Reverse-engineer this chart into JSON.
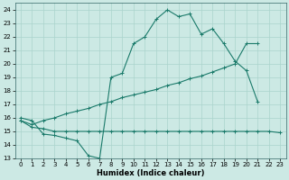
{
  "xlabel": "Humidex (Indice chaleur)",
  "xlim": [
    -0.5,
    23.5
  ],
  "ylim": [
    13,
    24.5
  ],
  "yticks": [
    13,
    14,
    15,
    16,
    17,
    18,
    19,
    20,
    21,
    22,
    23,
    24
  ],
  "xticks": [
    0,
    1,
    2,
    3,
    4,
    5,
    6,
    7,
    8,
    9,
    10,
    11,
    12,
    13,
    14,
    15,
    16,
    17,
    18,
    19,
    20,
    21,
    22,
    23
  ],
  "bg_color": "#cce9e4",
  "grid_color": "#aad4cc",
  "line_color": "#1a7a6a",
  "line1_x": [
    0,
    1,
    2,
    3,
    4,
    5,
    6,
    7,
    8,
    9,
    10,
    11,
    12,
    13,
    14,
    15,
    16,
    17,
    18,
    19,
    20,
    21
  ],
  "line1_y": [
    16.0,
    15.8,
    14.8,
    14.7,
    14.5,
    14.3,
    13.2,
    13.0,
    19.0,
    19.3,
    21.5,
    22.0,
    23.3,
    24.0,
    23.5,
    23.7,
    22.2,
    22.6,
    21.5,
    20.2,
    19.5,
    17.2
  ],
  "line2_x": [
    0,
    1,
    2,
    3,
    4,
    5,
    6,
    7,
    8,
    9,
    10,
    11,
    12,
    13,
    14,
    15,
    16,
    17,
    18,
    19,
    20,
    21,
    22,
    23
  ],
  "line2_y": [
    15.8,
    15.3,
    15.2,
    15.0,
    15.0,
    15.0,
    15.0,
    15.0,
    15.0,
    15.0,
    15.0,
    15.0,
    15.0,
    15.0,
    15.0,
    15.0,
    15.0,
    15.0,
    15.0,
    15.0,
    15.0,
    15.0,
    15.0,
    14.9
  ],
  "line3_x": [
    0,
    1,
    2,
    3,
    4,
    5,
    6,
    7,
    8,
    9,
    10,
    11,
    12,
    13,
    14,
    15,
    16,
    17,
    18,
    19,
    20,
    21
  ],
  "line3_y": [
    15.8,
    15.5,
    15.8,
    16.0,
    16.3,
    16.5,
    16.7,
    17.0,
    17.2,
    17.5,
    17.7,
    17.9,
    18.1,
    18.4,
    18.6,
    18.9,
    19.1,
    19.4,
    19.7,
    20.0,
    21.5,
    21.5
  ]
}
